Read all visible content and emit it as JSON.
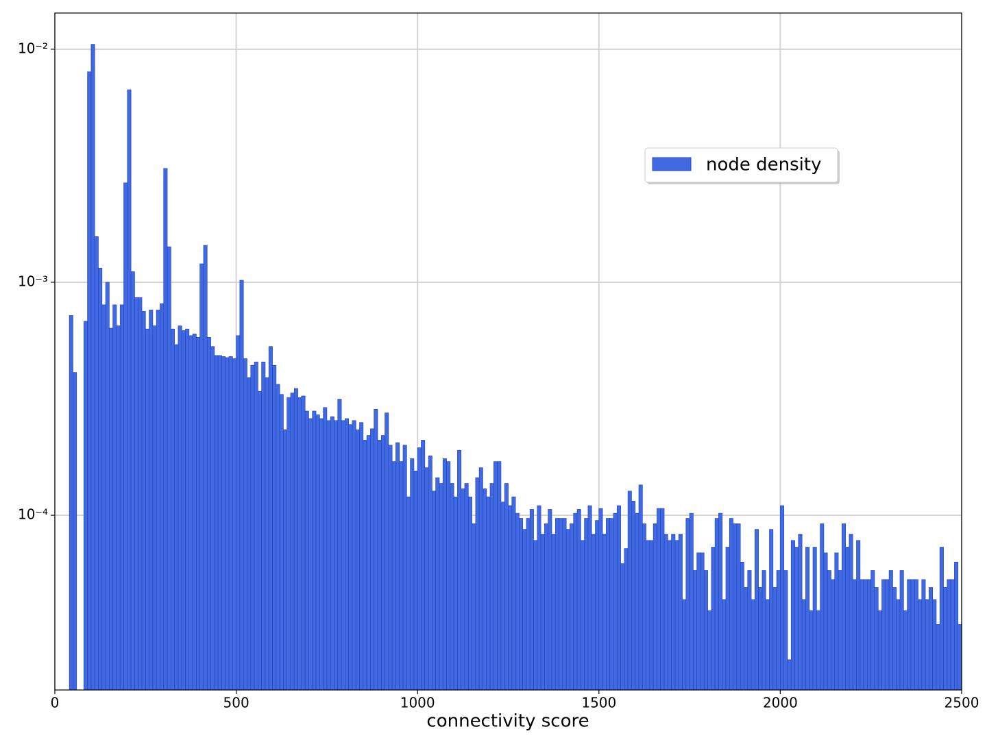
{
  "chart_data": {
    "type": "histogram",
    "xlabel": "connectivity score",
    "log_y": true,
    "grid": true,
    "legend": "upper right",
    "xlim": [
      0,
      2500
    ],
    "ylim": [
      1.78e-05,
      0.0143
    ],
    "xticks": [
      0,
      500,
      1000,
      1500,
      2000,
      2500
    ],
    "yticks": [
      {
        "value": 0.0001,
        "label": "10⁻⁴"
      },
      {
        "value": 0.001,
        "label": "10⁻³"
      },
      {
        "value": 0.01,
        "label": "10⁻²"
      }
    ],
    "bins": [
      0,
      10,
      20,
      30,
      40,
      50,
      60,
      70,
      80,
      90,
      100,
      110,
      120,
      130,
      140,
      150,
      160,
      170,
      180,
      190,
      200,
      210,
      220,
      230,
      240,
      250,
      260,
      270,
      280,
      290,
      300,
      310,
      320,
      330,
      340,
      350,
      360,
      370,
      380,
      390,
      400,
      410,
      420,
      430,
      440,
      450,
      460,
      470,
      480,
      490,
      500,
      510,
      520,
      530,
      540,
      550,
      560,
      570,
      580,
      590,
      600,
      610,
      620,
      630,
      640,
      650,
      660,
      670,
      680,
      690,
      700,
      710,
      720,
      730,
      740,
      750,
      760,
      770,
      780,
      790,
      800,
      810,
      820,
      830,
      840,
      850,
      860,
      870,
      880,
      890,
      900,
      910,
      920,
      930,
      940,
      950,
      960,
      970,
      980,
      990,
      1000,
      1010,
      1020,
      1030,
      1040,
      1050,
      1060,
      1070,
      1080,
      1090,
      1100,
      1110,
      1120,
      1130,
      1140,
      1150,
      1160,
      1170,
      1180,
      1190,
      1200,
      1210,
      1220,
      1230,
      1240,
      1250,
      1260,
      1270,
      1280,
      1290,
      1300,
      1310,
      1320,
      1330,
      1340,
      1350,
      1360,
      1370,
      1380,
      1390,
      1400,
      1410,
      1420,
      1430,
      1440,
      1450,
      1460,
      1470,
      1480,
      1490,
      1500,
      1510,
      1520,
      1530,
      1540,
      1550,
      1560,
      1570,
      1580,
      1590,
      1600,
      1610,
      1620,
      1630,
      1640,
      1650,
      1660,
      1670,
      1680,
      1690,
      1700,
      1710,
      1720,
      1730,
      1740,
      1750,
      1760,
      1770,
      1780,
      1790,
      1800,
      1810,
      1820,
      1830,
      1840,
      1850,
      1860,
      1870,
      1880,
      1890,
      1900,
      1910,
      1920,
      1930,
      1940,
      1950,
      1960,
      1970,
      1980,
      1990,
      2000,
      2010,
      2020,
      2030,
      2040,
      2050,
      2060,
      2070,
      2080,
      2090,
      2100,
      2110,
      2120,
      2130,
      2140,
      2150,
      2160,
      2170,
      2180,
      2190,
      2200,
      2210,
      2220,
      2230,
      2240,
      2250,
      2260,
      2270,
      2280,
      2290,
      2300,
      2310,
      2320,
      2330,
      2340,
      2350,
      2360,
      2370,
      2380,
      2390,
      2400,
      2410,
      2420,
      2430,
      2440,
      2450,
      2460,
      2470,
      2480,
      2490,
      2500
    ],
    "series": [
      {
        "name": "node density",
        "color": "#4169e1",
        "edgecolor": "#2347c0",
        "values": [
          null,
          null,
          null,
          null,
          0.00072,
          0.00041,
          null,
          null,
          0.00068,
          0.008,
          0.0105,
          0.00157,
          0.00115,
          0.0008,
          0.001,
          0.000635,
          0.0008,
          0.00065,
          0.0008,
          0.00267,
          0.0067,
          0.00111,
          0.00086,
          0.00086,
          0.00075,
          0.00063,
          0.00076,
          0.00065,
          0.00076,
          0.00081,
          0.00308,
          0.00142,
          0.00063,
          0.00054,
          0.00065,
          0.00062,
          0.00063,
          0.00059,
          0.0006,
          0.00058,
          0.0012,
          0.00144,
          0.00058,
          0.00053,
          0.000485,
          0.000485,
          0.00048,
          0.000475,
          0.00048,
          0.00047,
          0.00059,
          0.00102,
          0.00047,
          0.00039,
          0.00044,
          0.000455,
          0.00034,
          0.000455,
          0.00039,
          0.00053,
          0.00044,
          0.000365,
          0.00033,
          0.000233,
          0.00032,
          0.000335,
          0.00035,
          0.00032,
          0.000325,
          0.00028,
          0.00026,
          0.00028,
          0.00027,
          0.00026,
          0.00029,
          0.000255,
          0.000265,
          0.000255,
          0.000315,
          0.000255,
          0.00026,
          0.000245,
          0.000255,
          0.000233,
          0.00025,
          0.00021,
          0.00022,
          0.000235,
          0.000285,
          0.00021,
          0.00022,
          0.000275,
          0.0002,
          0.00017,
          0.000205,
          0.00017,
          0.0002,
          0.00012,
          0.000175,
          0.000155,
          0.000195,
          0.00021,
          0.00016,
          0.00018,
          0.000127,
          0.000145,
          0.000137,
          0.000175,
          0.00017,
          0.000137,
          0.00012,
          0.00019,
          0.00013,
          0.000137,
          0.00012,
          9.2e-05,
          0.000145,
          0.00016,
          0.00013,
          0.00012,
          0.000137,
          0.00017,
          0.00017,
          0.000114,
          0.000137,
          0.00011,
          0.00012,
          0.000102,
          9.7e-05,
          8.7e-05,
          9.7e-05,
          0.000106,
          7.8e-05,
          0.00011,
          8.3e-05,
          9.2e-05,
          0.000106,
          8.3e-05,
          9.7e-05,
          9.7e-05,
          9.7e-05,
          8.7e-05,
          9.2e-05,
          0.000102,
          0.000106,
          7.8e-05,
          9.7e-05,
          0.00011,
          8.3e-05,
          9.5e-05,
          0.000107,
          8.3e-05,
          9.7e-05,
          9.7e-05,
          0.000102,
          0.00011,
          6.2e-05,
          7.2e-05,
          0.000127,
          0.000115,
          0.000102,
          0.000135,
          9.2e-05,
          7.8e-05,
          7.8e-05,
          9.2e-05,
          0.000107,
          0.000107,
          8.3e-05,
          7.8e-05,
          8.3e-05,
          7.8e-05,
          8.3e-05,
          4.35e-05,
          9.7e-05,
          0.000102,
          5.8e-05,
          6.9e-05,
          6.9e-05,
          5.8e-05,
          3.9e-05,
          7.3e-05,
          9.7e-05,
          0.000102,
          4.35e-05,
          7.3e-05,
          9.7e-05,
          9.2e-05,
          9.2e-05,
          6.3e-05,
          4.9e-05,
          5.8e-05,
          4.35e-05,
          8.7e-05,
          4.9e-05,
          5.8e-05,
          4.35e-05,
          8.7e-05,
          4.9e-05,
          5.8e-05,
          0.00011,
          5.8e-05,
          2.4e-05,
          7.8e-05,
          7.3e-05,
          8.3e-05,
          4.35e-05,
          7.3e-05,
          3.9e-05,
          7.3e-05,
          3.9e-05,
          9.2e-05,
          6.9e-05,
          5.8e-05,
          5.3e-05,
          6.9e-05,
          5.8e-05,
          9.2e-05,
          7.3e-05,
          8.3e-05,
          5.3e-05,
          7.8e-05,
          5.3e-05,
          5.3e-05,
          5.3e-05,
          5.8e-05,
          4.9e-05,
          3.9e-05,
          5.3e-05,
          5.3e-05,
          5.8e-05,
          4.9e-05,
          4.35e-05,
          5.8e-05,
          3.9e-05,
          5.3e-05,
          5.3e-05,
          5.3e-05,
          4.35e-05,
          5.3e-05,
          4.35e-05,
          4.9e-05,
          4.35e-05,
          3.4e-05,
          7.3e-05,
          4.9e-05,
          5.3e-05,
          5.3e-05,
          6.3e-05,
          3.4e-05
        ]
      }
    ]
  }
}
